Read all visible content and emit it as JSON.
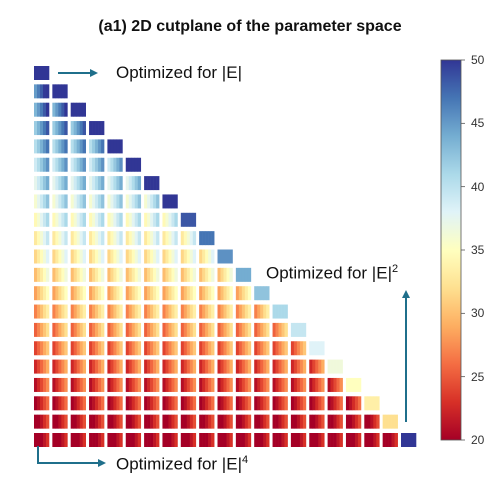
{
  "title": "(a1) 2D cutplane of the parameter space",
  "annotations": {
    "top": "Optimized for |E|",
    "middle": "Optimized for |E|",
    "middle_sup": "2",
    "bottom": "Optimized for |E|",
    "bottom_sup": "4"
  },
  "colorbar": {
    "colormap": "RdYlBu",
    "min": 20,
    "max": 50,
    "ticks": [
      "50",
      "45",
      "40",
      "35",
      "30",
      "25",
      "20"
    ]
  },
  "grid": {
    "rows": 21,
    "shape": "lower-triangular",
    "color_scale": "top rows high (blue), bottom rows low (red)"
  },
  "colors": {
    "arrow": "#1f6f8b",
    "text": "#111111"
  }
}
